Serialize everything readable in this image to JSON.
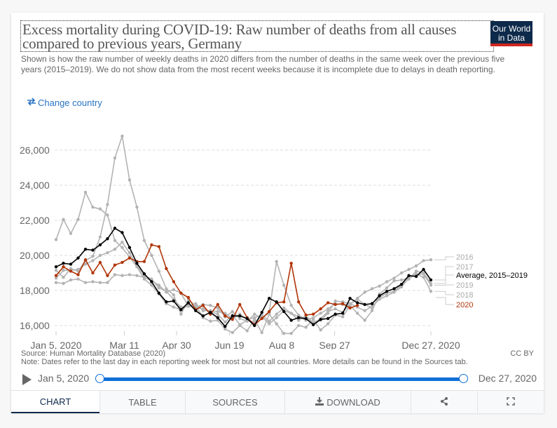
{
  "header": {
    "title": "Excess mortality during COVID-19: Raw number of deaths from all causes compared to previous years, Germany",
    "logo_line1": "Our World",
    "logo_line2": "in Data",
    "subtitle": "Shown is how the raw number of weekly deaths in 2020 differs from the number of deaths in the same week over the previous five years (2015–2019). We do not show data from the most recent weeks because it is incomplete due to delays in death reporting.",
    "change_country_label": "Change country"
  },
  "footer": {
    "source": "Source: Human Mortality Database (2020)",
    "note": "Note: Dates refer to the last day in each reporting week for most but not all countries. More details can be found in the Sources tab.",
    "license": "CC BY"
  },
  "timeline": {
    "start_label": "Jan 5, 2020",
    "end_label": "Dec 27, 2020",
    "range_start_fraction": 0,
    "range_end_fraction": 1
  },
  "tabs": [
    {
      "label": "CHART",
      "active": true
    },
    {
      "label": "TABLE",
      "active": false
    },
    {
      "label": "SOURCES",
      "active": false
    },
    {
      "label": "DOWNLOAD",
      "active": false,
      "icon": "download-icon"
    },
    {
      "label": "",
      "active": false,
      "icon": "share-icon"
    },
    {
      "label": "",
      "active": false,
      "icon": "fullscreen-icon"
    }
  ],
  "colors": {
    "accent": "#0f6fd6",
    "brand": "#0e2a4b",
    "brand_stripe": "#ce261e",
    "series_2020": "#b13507",
    "average": "#000000",
    "past_years": "#b3b3b3"
  },
  "chart_data": {
    "type": "line",
    "title": "Excess mortality during COVID-19: Raw number of deaths from all causes compared to previous years, Germany",
    "xlabel": "",
    "ylabel": "",
    "x_start": "Jan 5, 2020",
    "x_end": "Dec 27, 2020",
    "x_step": "1 week",
    "n_points": 52,
    "x_ticks": [
      {
        "label": "Jan 5, 2020",
        "week": 0
      },
      {
        "label": "Mar 11",
        "week": 9.3
      },
      {
        "label": "Apr 30",
        "week": 16.4
      },
      {
        "label": "Jun 19",
        "week": 23.6
      },
      {
        "label": "Aug 8",
        "week": 30.7
      },
      {
        "label": "Sep 27",
        "week": 37.9
      },
      {
        "label": "Dec 27, 2020",
        "week": 51
      }
    ],
    "y_ticks": [
      16000,
      18000,
      20000,
      22000,
      24000,
      26000
    ],
    "y_tick_labels": [
      "16,000",
      "18,000",
      "20,000",
      "22,000",
      "24,000",
      "26,000"
    ],
    "ylim": [
      15500,
      27000
    ],
    "grid": "horizontal dashed",
    "legend": "right, end-of-line labels",
    "series": [
      {
        "name": "2016",
        "color": "#b3b3b3",
        "values": [
          18450,
          18400,
          18600,
          18650,
          18450,
          18500,
          18450,
          18450,
          18900,
          18850,
          18900,
          18850,
          18750,
          18550,
          18300,
          17900,
          18050,
          17850,
          17100,
          17250,
          16850,
          16850,
          16800,
          16700,
          16400,
          16650,
          16350,
          16450,
          16600,
          16250,
          16650,
          17000,
          16700,
          16500,
          16300,
          16450,
          16700,
          16950,
          17250,
          17200,
          17200,
          17550,
          17900,
          18100,
          18250,
          18500,
          18700,
          19000,
          19200,
          19400,
          19700,
          19750
        ]
      },
      {
        "name": "2017",
        "color": "#b3b3b3",
        "values": [
          20900,
          22050,
          21250,
          22050,
          23600,
          22750,
          22650,
          22300,
          20850,
          20450,
          19900,
          19350,
          18650,
          18300,
          17800,
          17250,
          17050,
          16900,
          17150,
          17050,
          17200,
          17150,
          17000,
          16500,
          16800,
          16400,
          16250,
          16650,
          16400,
          16750,
          19650,
          18300,
          17150,
          16600,
          16350,
          16150,
          16300,
          16700,
          17400,
          17350,
          17250,
          17500,
          17200,
          17000,
          17600,
          17850,
          17950,
          18300,
          18650,
          19100,
          19000,
          18400
        ]
      },
      {
        "name": "Average, 2015–2019",
        "color": "#000000",
        "values": [
          19350,
          19550,
          19500,
          19850,
          20350,
          20300,
          20600,
          20950,
          21550,
          21300,
          20450,
          19550,
          18950,
          18500,
          17850,
          17350,
          17400,
          16900,
          17300,
          16850,
          16550,
          16750,
          16450,
          15950,
          16550,
          16550,
          16400,
          16000,
          16750,
          17550,
          17350,
          16800,
          16300,
          16450,
          16400,
          16050,
          16350,
          16400,
          16650,
          16700,
          17550,
          17300,
          17200,
          17250,
          17700,
          17950,
          18100,
          18350,
          18850,
          18800,
          19200,
          18600
        ]
      },
      {
        "name": "2019",
        "color": "#b3b3b3",
        "values": [
          18700,
          19150,
          19150,
          19200,
          19500,
          19700,
          20000,
          20150,
          20350,
          20750,
          20150,
          19400,
          18850,
          18650,
          18150,
          17950,
          17500,
          17050,
          17100,
          17050,
          16950,
          16800,
          16650,
          16200,
          16600,
          16050,
          16300,
          16200,
          16500,
          16100,
          16450,
          16850,
          16700,
          16300,
          16550,
          16150,
          16400,
          16800,
          16950,
          16750,
          17250,
          17050,
          16850,
          17100,
          17500,
          17700,
          17900,
          18200,
          18700,
          18900,
          18950,
          18300
        ]
      },
      {
        "name": "2018",
        "color": "#b3b3b3",
        "values": [
          19150,
          18750,
          19250,
          19100,
          19700,
          19950,
          21050,
          22900,
          25550,
          26800,
          24300,
          22750,
          20850,
          20000,
          19100,
          18100,
          17750,
          16650,
          17450,
          17150,
          16450,
          16250,
          16300,
          15800,
          15600,
          16000,
          15700,
          16350,
          15600,
          16650,
          16100,
          15550,
          15550,
          16000,
          15900,
          16350,
          15750,
          16100,
          16600,
          16500,
          17150,
          16700,
          16300,
          16850,
          17800,
          18150,
          18550,
          18600,
          18700,
          18950,
          18750,
          17950
        ]
      },
      {
        "name": "2020",
        "color": "#b13507",
        "values": [
          18850,
          19350,
          19100,
          18900,
          19750,
          19000,
          19600,
          18850,
          19450,
          19600,
          19850,
          19650,
          19650,
          20600,
          20500,
          19250,
          18500,
          17850,
          17600,
          16900,
          17150,
          16650,
          17200,
          16550,
          16350,
          17200,
          16450,
          16050,
          16400,
          16800,
          17300,
          17350,
          19550,
          17350,
          16600,
          16650,
          16950,
          17300,
          17200,
          17250,
          17000,
          17150,
          null,
          null,
          null,
          null,
          null,
          null,
          null,
          null,
          null,
          null
        ]
      }
    ],
    "legend_labels": [
      {
        "name": "2016",
        "color": "#b3b3b3"
      },
      {
        "name": "2017",
        "color": "#b3b3b3"
      },
      {
        "name": "Average, 2015–2019",
        "color": "#000000"
      },
      {
        "name": "2019",
        "color": "#b3b3b3"
      },
      {
        "name": "2018",
        "color": "#b3b3b3"
      },
      {
        "name": "2020",
        "color": "#b13507"
      }
    ]
  }
}
